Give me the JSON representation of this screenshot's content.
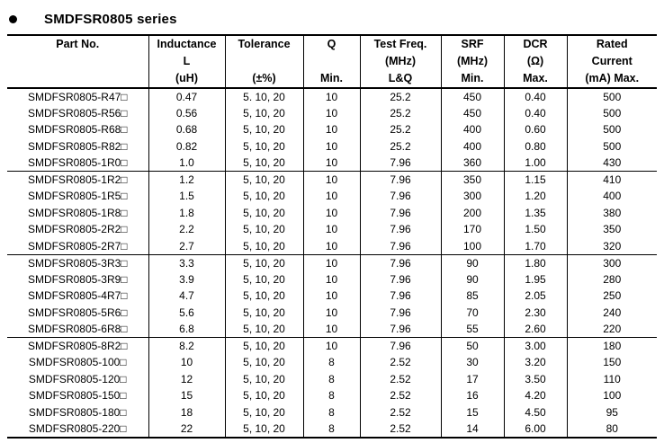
{
  "page": {
    "background": "#ffffff",
    "text_color": "#000000",
    "rule_color": "#000000"
  },
  "title": {
    "bullet_icon": "●",
    "text": "SMDFSR0805 series"
  },
  "table": {
    "columns": [
      {
        "id": "part-no",
        "lines": [
          "Part No.",
          "",
          ""
        ]
      },
      {
        "id": "inductance",
        "lines": [
          "Inductance",
          "L",
          "(uH)"
        ]
      },
      {
        "id": "tolerance",
        "lines": [
          "Tolerance",
          "",
          "(±%)"
        ]
      },
      {
        "id": "q",
        "lines": [
          "Q",
          "",
          "Min."
        ]
      },
      {
        "id": "test-freq",
        "lines": [
          "Test Freq.",
          "(MHz)",
          "L&Q"
        ]
      },
      {
        "id": "srf",
        "lines": [
          "SRF",
          "(MHz)",
          "Min."
        ]
      },
      {
        "id": "dcr",
        "lines": [
          "DCR",
          "(Ω)",
          "Max."
        ]
      },
      {
        "id": "rated-current",
        "lines": [
          "Rated",
          "Current",
          "(mA) Max."
        ]
      }
    ],
    "groups": [
      {
        "rows": [
          [
            "SMDFSR0805-R47□",
            "0.47",
            "5. 10, 20",
            "10",
            "25.2",
            "450",
            "0.40",
            "500"
          ],
          [
            "SMDFSR0805-R56□",
            "0.56",
            "5, 10, 20",
            "10",
            "25.2",
            "450",
            "0.40",
            "500"
          ],
          [
            "SMDFSR0805-R68□",
            "0.68",
            "5, 10, 20",
            "10",
            "25.2",
            "400",
            "0.60",
            "500"
          ],
          [
            "SMDFSR0805-R82□",
            "0.82",
            "5, 10, 20",
            "10",
            "25.2",
            "400",
            "0.80",
            "500"
          ],
          [
            "SMDFSR0805-1R0□",
            "1.0",
            "5, 10, 20",
            "10",
            "7.96",
            "360",
            "1.00",
            "430"
          ]
        ]
      },
      {
        "rows": [
          [
            "SMDFSR0805-1R2□",
            "1.2",
            "5, 10, 20",
            "10",
            "7.96",
            "350",
            "1.15",
            "410"
          ],
          [
            "SMDFSR0805-1R5□",
            "1.5",
            "5, 10, 20",
            "10",
            "7.96",
            "300",
            "1.20",
            "400"
          ],
          [
            "SMDFSR0805-1R8□",
            "1.8",
            "5, 10, 20",
            "10",
            "7.96",
            "200",
            "1.35",
            "380"
          ],
          [
            "SMDFSR0805-2R2□",
            "2.2",
            "5, 10, 20",
            "10",
            "7.96",
            "170",
            "1.50",
            "350"
          ],
          [
            "SMDFSR0805-2R7□",
            "2.7",
            "5, 10, 20",
            "10",
            "7.96",
            "100",
            "1.70",
            "320"
          ]
        ]
      },
      {
        "rows": [
          [
            "SMDFSR0805-3R3□",
            "3.3",
            "5, 10, 20",
            "10",
            "7.96",
            "90",
            "1.80",
            "300"
          ],
          [
            "SMDFSR0805-3R9□",
            "3.9",
            "5, 10, 20",
            "10",
            "7.96",
            "90",
            "1.95",
            "280"
          ],
          [
            "SMDFSR0805-4R7□",
            "4.7",
            "5, 10, 20",
            "10",
            "7.96",
            "85",
            "2.05",
            "250"
          ],
          [
            "SMDFSR0805-5R6□",
            "5.6",
            "5, 10, 20",
            "10",
            "7.96",
            "70",
            "2.30",
            "240"
          ],
          [
            "SMDFSR0805-6R8□",
            "6.8",
            "5, 10, 20",
            "10",
            "7.96",
            "55",
            "2.60",
            "220"
          ]
        ]
      },
      {
        "rows": [
          [
            "SMDFSR0805-8R2□",
            "8.2",
            "5, 10, 20",
            "10",
            "7.96",
            "50",
            "3.00",
            "180"
          ],
          [
            "SMDFSR0805-100□",
            "10",
            "5, 10, 20",
            "8",
            "2.52",
            "30",
            "3.20",
            "150"
          ],
          [
            "SMDFSR0805-120□",
            "12",
            "5, 10, 20",
            "8",
            "2.52",
            "17",
            "3.50",
            "110"
          ],
          [
            "SMDFSR0805-150□",
            "15",
            "5, 10, 20",
            "8",
            "2.52",
            "16",
            "4.20",
            "100"
          ],
          [
            "SMDFSR0805-180□",
            "18",
            "5, 10, 20",
            "8",
            "2.52",
            "15",
            "4.50",
            "95"
          ],
          [
            "SMDFSR0805-220□",
            "22",
            "5, 10, 20",
            "8",
            "2.52",
            "14",
            "6.00",
            "80"
          ]
        ]
      }
    ]
  }
}
